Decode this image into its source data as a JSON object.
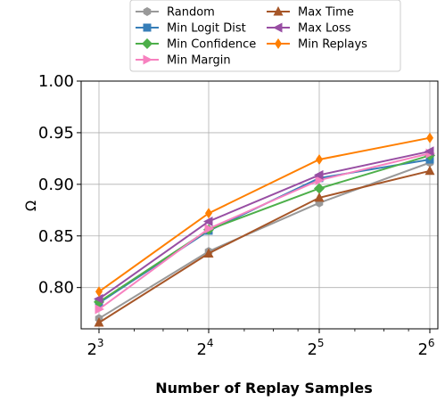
{
  "chart_data": {
    "type": "line",
    "xlabel": "Number of Replay Samples",
    "ylabel": "Ω",
    "x_scale": "log2",
    "x": [
      8,
      16,
      32,
      64
    ],
    "x_tick_labels": [
      {
        "base": "2",
        "exp": "3"
      },
      {
        "base": "2",
        "exp": "4"
      },
      {
        "base": "2",
        "exp": "5"
      },
      {
        "base": "2",
        "exp": "6"
      }
    ],
    "ylim": [
      0.76,
      1.0
    ],
    "y_ticks": [
      "0.80",
      "0.85",
      "0.90",
      "0.95",
      "1.00"
    ],
    "grid": true,
    "legend_position": "top, above plot, 2 columns",
    "series": [
      {
        "name": "Random",
        "color": "#999999",
        "marker": "hexagon",
        "values": [
          0.77,
          0.835,
          0.882,
          0.921
        ]
      },
      {
        "name": "Min Logit Dist",
        "color": "#377eb8",
        "marker": "square",
        "values": [
          0.785,
          0.855,
          0.906,
          0.924
        ]
      },
      {
        "name": "Min Confidence",
        "color": "#4daf4a",
        "marker": "diamond",
        "values": [
          0.786,
          0.856,
          0.896,
          0.928
        ]
      },
      {
        "name": "Min Margin",
        "color": "#f781bf",
        "marker": "triangle-right",
        "values": [
          0.779,
          0.857,
          0.904,
          0.93
        ]
      },
      {
        "name": "Max Time",
        "color": "#a65628",
        "marker": "triangle-up",
        "values": [
          0.766,
          0.833,
          0.887,
          0.913
        ]
      },
      {
        "name": "Max Loss",
        "color": "#984ea3",
        "marker": "triangle-left",
        "values": [
          0.789,
          0.864,
          0.909,
          0.932
        ]
      },
      {
        "name": "Min Replays",
        "color": "#ff7f00",
        "marker": "thin-diamond",
        "values": [
          0.796,
          0.872,
          0.924,
          0.945
        ]
      }
    ]
  }
}
